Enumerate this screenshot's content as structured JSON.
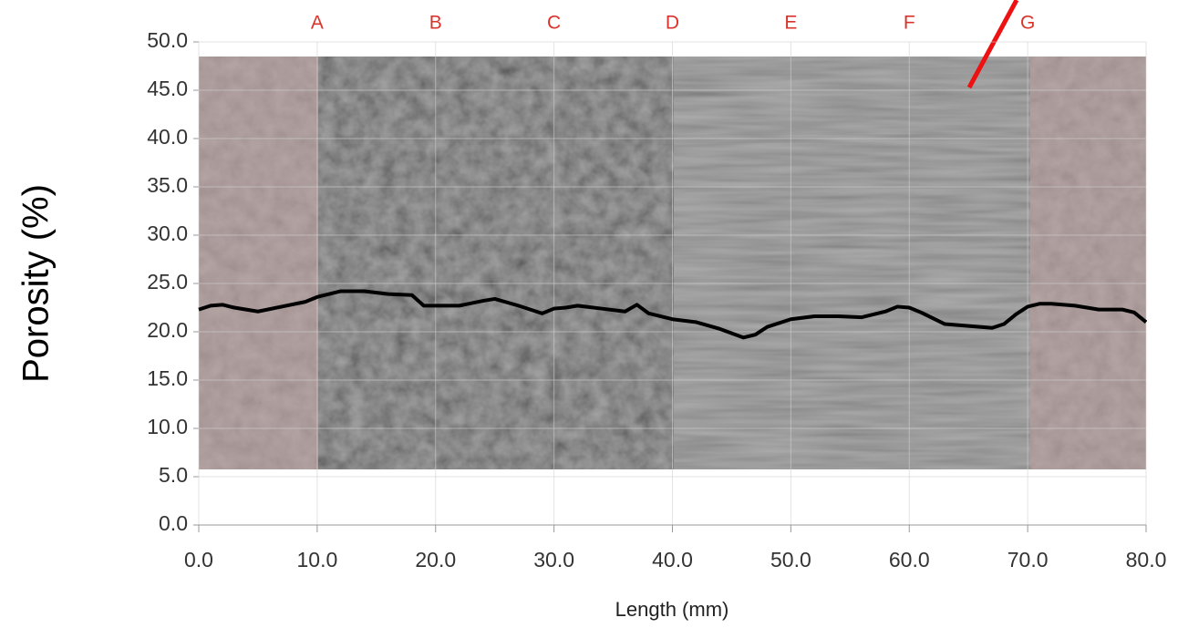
{
  "chart_data": {
    "type": "line",
    "x_label": "Length (mm)",
    "y_label": "Porosity (%)",
    "xlim": [
      0,
      80
    ],
    "ylim": [
      0,
      50
    ],
    "xticks": [
      {
        "value": 0,
        "label": "0.0"
      },
      {
        "value": 10,
        "label": "10.0"
      },
      {
        "value": 20,
        "label": "20.0"
      },
      {
        "value": 30,
        "label": "30.0"
      },
      {
        "value": 40,
        "label": "40.0"
      },
      {
        "value": 50,
        "label": "50.0"
      },
      {
        "value": 60,
        "label": "60.0"
      },
      {
        "value": 70,
        "label": "70.0"
      },
      {
        "value": 80,
        "label": "80.0"
      }
    ],
    "yticks": [
      {
        "value": 0,
        "label": "0.0"
      },
      {
        "value": 5,
        "label": "5.0"
      },
      {
        "value": 10,
        "label": "10.0"
      },
      {
        "value": 15,
        "label": "15.0"
      },
      {
        "value": 20,
        "label": "20.0"
      },
      {
        "value": 25,
        "label": "25.0"
      },
      {
        "value": 30,
        "label": "30.0"
      },
      {
        "value": 35,
        "label": "35.0"
      },
      {
        "value": 40,
        "label": "40.0"
      },
      {
        "value": 45,
        "label": "45.0"
      },
      {
        "value": 50,
        "label": "50.0"
      }
    ],
    "grid": true,
    "annotations": [
      {
        "text": "A",
        "x": 10
      },
      {
        "text": "B",
        "x": 20
      },
      {
        "text": "C",
        "x": 30
      },
      {
        "text": "D",
        "x": 40
      },
      {
        "text": "E",
        "x": 50
      },
      {
        "text": "F",
        "x": 60
      },
      {
        "text": "G",
        "x": 70
      }
    ],
    "x": [
      0,
      1,
      2,
      3,
      5,
      7,
      9,
      10,
      12,
      14,
      16,
      18,
      19,
      22,
      24,
      25,
      27,
      29,
      30,
      31,
      32,
      34,
      36,
      37,
      38,
      40,
      42,
      44,
      46,
      47,
      48,
      50,
      52,
      54,
      56,
      58,
      59,
      60,
      61,
      63,
      65,
      67,
      68,
      69,
      70,
      71,
      72,
      74,
      76,
      78,
      79,
      80
    ],
    "series": [
      {
        "color": "#000000",
        "values": [
          22.3,
          22.7,
          22.8,
          22.5,
          22.1,
          22.6,
          23.1,
          23.6,
          24.2,
          24.2,
          23.9,
          23.8,
          22.7,
          22.7,
          23.2,
          23.4,
          22.7,
          21.9,
          22.4,
          22.5,
          22.7,
          22.4,
          22.1,
          22.8,
          21.9,
          21.3,
          21.0,
          20.3,
          19.4,
          19.7,
          20.5,
          21.3,
          21.6,
          21.6,
          21.5,
          22.1,
          22.6,
          22.5,
          22.0,
          20.8,
          20.6,
          20.4,
          20.8,
          21.8,
          22.6,
          22.9,
          22.9,
          22.7,
          22.3,
          22.3,
          22.0,
          21.0
        ]
      }
    ]
  }
}
